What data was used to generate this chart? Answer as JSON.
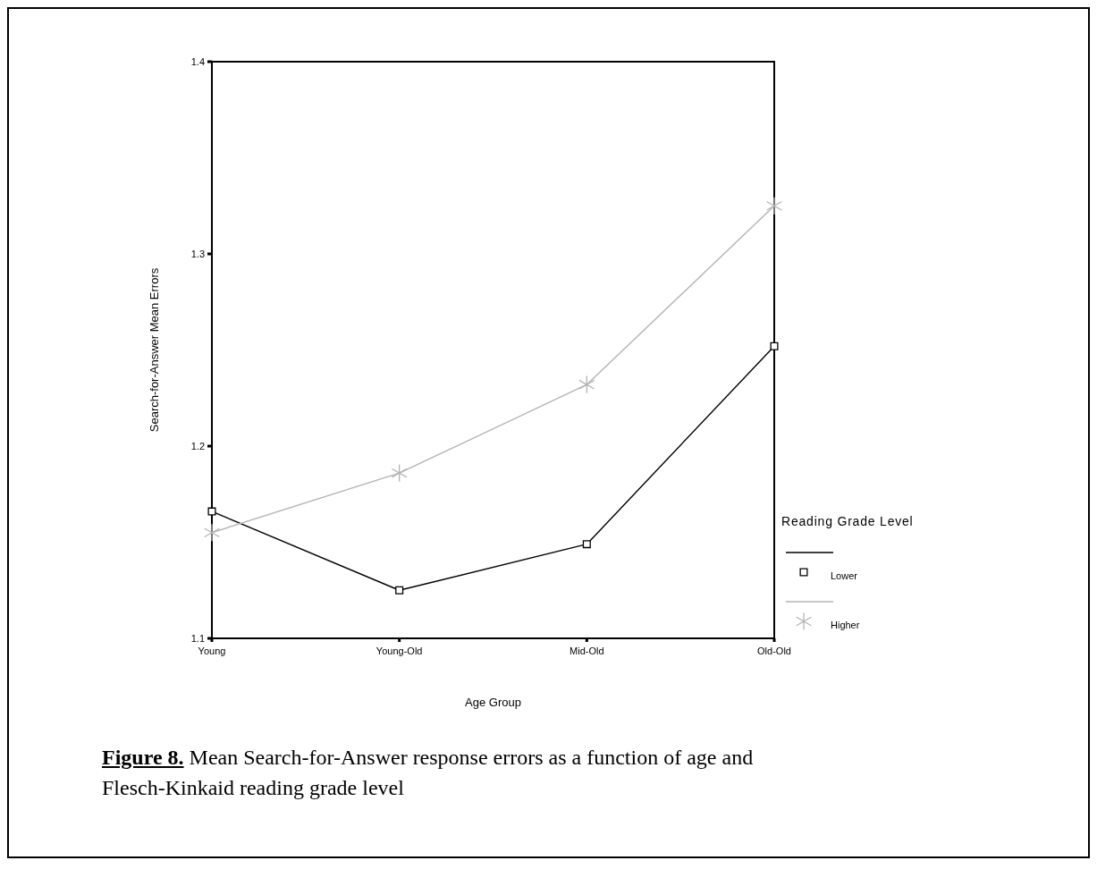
{
  "chart_data": {
    "type": "line",
    "xlabel": "Age Group",
    "ylabel": "Search-for-Answer Mean Errors",
    "legend_title": "Reading Grade Level",
    "legend": "right",
    "categories": [
      "Young",
      "Young-Old",
      "Mid-Old",
      "Old-Old"
    ],
    "series": [
      {
        "name": "Lower",
        "color": "#000000",
        "marker": "square",
        "line_style": "solid",
        "values": [
          1.166,
          1.125,
          1.149,
          1.252
        ]
      },
      {
        "name": "Higher",
        "color": "#b4b4b4",
        "marker": "cross",
        "line_style": "solid",
        "values": [
          1.155,
          1.186,
          1.232,
          1.325
        ]
      }
    ],
    "ylim": [
      1.1,
      1.4
    ],
    "yticks": [
      1.1,
      1.2,
      1.3,
      1.4
    ],
    "grid": false,
    "annotations": [
      "Figure 8.",
      "Mean Search-for-Answer response errors as a function of age and Flesch-Kinkaid reading grade level"
    ]
  }
}
